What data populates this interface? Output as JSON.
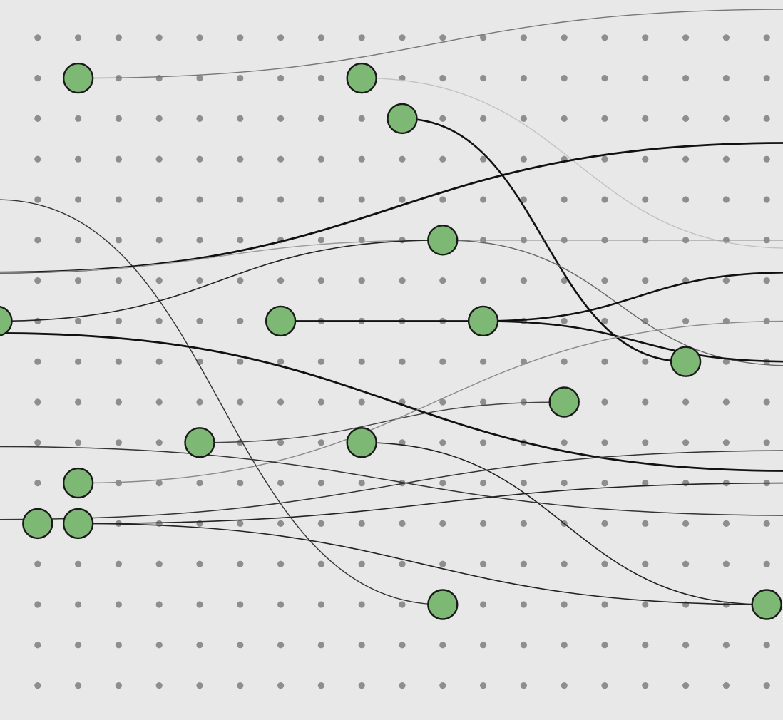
{
  "colors": {
    "background": "#e8e8e8",
    "grid_dot": "#8e8e8e",
    "node_fill": "#7db874",
    "node_stroke": "#1a1a1a"
  },
  "grid": {
    "columns": 20,
    "rows": 17
  },
  "nodes": [
    {
      "id": "n1",
      "col": 2,
      "row": 2
    },
    {
      "id": "n2",
      "col": 9,
      "row": 2
    },
    {
      "id": "n3",
      "col": 10,
      "row": 3
    },
    {
      "id": "n4",
      "col": 11,
      "row": 6
    },
    {
      "id": "n5",
      "col": 0,
      "row": 8
    },
    {
      "id": "n6",
      "col": 7,
      "row": 8
    },
    {
      "id": "n7",
      "col": 12,
      "row": 8
    },
    {
      "id": "n8",
      "col": 17,
      "row": 9
    },
    {
      "id": "n9",
      "col": 14,
      "row": 10
    },
    {
      "id": "n10",
      "col": 5,
      "row": 11
    },
    {
      "id": "n11",
      "col": 9,
      "row": 11
    },
    {
      "id": "n12",
      "col": 2,
      "row": 12
    },
    {
      "id": "n13",
      "col": 1,
      "row": 13
    },
    {
      "id": "n14",
      "col": 2,
      "row": 13
    },
    {
      "id": "n15",
      "col": 11,
      "row": 15
    },
    {
      "id": "n16",
      "col": 19,
      "row": 15
    }
  ],
  "edges": [
    {
      "from": [
        2,
        2
      ],
      "to": [
        19.6,
        0.3
      ],
      "color": "#777777",
      "weight": 1.4
    },
    {
      "from": [
        9,
        2
      ],
      "to": [
        19.6,
        6.2
      ],
      "color": "#c2c2c2",
      "weight": 1.4
    },
    {
      "from": [
        10,
        3
      ],
      "to": [
        17,
        9
      ],
      "color": "#111111",
      "weight": 2.6
    },
    {
      "from": [
        0,
        5
      ],
      "to": [
        11,
        15
      ],
      "color": "#333333",
      "weight": 1.4
    },
    {
      "from": [
        0,
        6.8
      ],
      "to": [
        19.6,
        3.6
      ],
      "color": "#111111",
      "weight": 2.8
    },
    {
      "from": [
        0,
        6.8
      ],
      "to": [
        11,
        6
      ],
      "color": "#9a9a9a",
      "weight": 1.4
    },
    {
      "from": [
        11,
        6
      ],
      "to": [
        19.6,
        6
      ],
      "color": "#888888",
      "weight": 1.4
    },
    {
      "from": [
        11,
        6
      ],
      "to": [
        19.6,
        9.1
      ],
      "color": "#666666",
      "weight": 1.4
    },
    {
      "from": [
        0,
        8
      ],
      "to": [
        11,
        6
      ],
      "color": "#222222",
      "weight": 1.6
    },
    {
      "from": [
        0,
        8.3
      ],
      "to": [
        19.6,
        11.7
      ],
      "color": "#111111",
      "weight": 2.8
    },
    {
      "from": [
        7,
        8
      ],
      "to": [
        12,
        8
      ],
      "color": "#111111",
      "weight": 2.6
    },
    {
      "from": [
        12,
        8
      ],
      "to": [
        19.6,
        6.8
      ],
      "color": "#111111",
      "weight": 2.6
    },
    {
      "from": [
        12,
        8
      ],
      "to": [
        19.6,
        9
      ],
      "color": "#111111",
      "weight": 2.6
    },
    {
      "from": [
        5,
        11
      ],
      "to": [
        14,
        10
      ],
      "color": "#444444",
      "weight": 1.4
    },
    {
      "from": [
        2,
        12
      ],
      "to": [
        19.6,
        8
      ],
      "color": "#8a8a8a",
      "weight": 1.4
    },
    {
      "from": [
        9,
        11
      ],
      "to": [
        19,
        15
      ],
      "color": "#222222",
      "weight": 1.6
    },
    {
      "from": [
        0,
        11.1
      ],
      "to": [
        19.6,
        12.8
      ],
      "color": "#333333",
      "weight": 1.5
    },
    {
      "from": [
        0,
        12.9
      ],
      "to": [
        19.6,
        11.2
      ],
      "color": "#333333",
      "weight": 1.5
    },
    {
      "from": [
        2,
        13
      ],
      "to": [
        19.6,
        12
      ],
      "color": "#222222",
      "weight": 1.6
    },
    {
      "from": [
        2,
        13
      ],
      "to": [
        19,
        15
      ],
      "color": "#222222",
      "weight": 1.6
    }
  ]
}
